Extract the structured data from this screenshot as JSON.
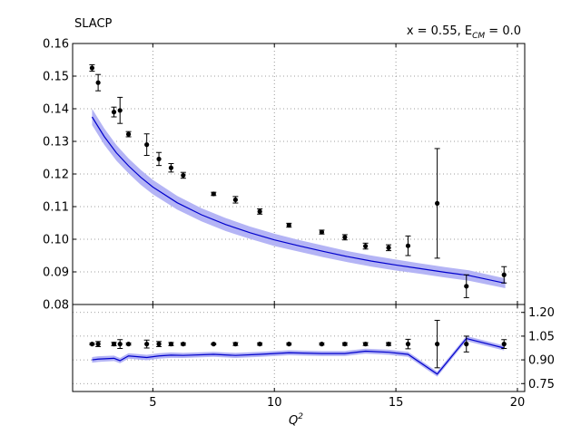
{
  "labels": {
    "experiment": "SLACP",
    "kinematics": "x = 0.55, E",
    "kinematics_sub": "CM",
    "kinematics_tail": " = 0.0",
    "xlabel_main": "Q",
    "xlabel_sup": "2"
  },
  "colors": {
    "theory_line": "#0000cc",
    "theory_band": "#b4b4f5",
    "data_points": "#000000",
    "grid": "#808080"
  },
  "chart_data": [
    {
      "type": "scatter",
      "panel": "top",
      "title": "SLACP",
      "xlim": [
        1.7,
        20.3
      ],
      "ylim": [
        0.08,
        0.16
      ],
      "yticks": [
        "0.08",
        "0.09",
        "0.10",
        "0.11",
        "0.12",
        "0.13",
        "0.14",
        "0.15",
        "0.16"
      ],
      "grid": true,
      "series": [
        {
          "kind": "data",
          "x": [
            2.5,
            2.75,
            3.4,
            3.65,
            4.0,
            4.75,
            5.25,
            5.75,
            6.25,
            7.5,
            8.4,
            9.4,
            10.6,
            11.95,
            12.9,
            13.75,
            14.7,
            15.5,
            16.7,
            17.9,
            19.45
          ],
          "y": [
            0.1525,
            0.148,
            0.139,
            0.1395,
            0.1322,
            0.129,
            0.1246,
            0.1219,
            0.1196,
            0.1139,
            0.1121,
            0.1085,
            0.1043,
            0.1022,
            0.1006,
            0.0979,
            0.0974,
            0.098,
            0.111,
            0.0856,
            0.0891
          ],
          "err": [
            0.001,
            0.0025,
            0.0015,
            0.004,
            0.0008,
            0.0033,
            0.002,
            0.0013,
            0.0009,
            0.0005,
            0.001,
            0.0008,
            0.0006,
            0.0006,
            0.0008,
            0.0009,
            0.0009,
            0.003,
            0.0168,
            0.0035,
            0.0025
          ]
        },
        {
          "kind": "theory",
          "x": [
            2.5,
            3.0,
            3.5,
            4.0,
            4.5,
            5.0,
            6.0,
            7.0,
            8.0,
            9.0,
            10.0,
            11.0,
            12.0,
            13.0,
            14.0,
            15.0,
            16.0,
            17.0,
            18.0,
            19.5
          ],
          "y": [
            0.1375,
            0.1315,
            0.1265,
            0.1225,
            0.119,
            0.116,
            0.1112,
            0.1075,
            0.1045,
            0.102,
            0.0998,
            0.098,
            0.0963,
            0.0947,
            0.0933,
            0.0921,
            0.091,
            0.0899,
            0.0889,
            0.0865
          ],
          "band": [
            0.0025,
            0.0025,
            0.0024,
            0.0023,
            0.0023,
            0.0022,
            0.0021,
            0.002,
            0.002,
            0.0019,
            0.0019,
            0.0018,
            0.0018,
            0.0017,
            0.0017,
            0.0017,
            0.0016,
            0.0016,
            0.0016,
            0.0015
          ]
        }
      ]
    },
    {
      "type": "scatter",
      "panel": "bottom",
      "xlabel": "Q²",
      "xlim": [
        1.7,
        20.3
      ],
      "ylim": [
        0.7,
        1.25
      ],
      "xticks": [
        "5",
        "10",
        "15",
        "20"
      ],
      "yticks": [
        "1.20",
        "1.05",
        "0.90",
        "0.75"
      ],
      "grid": true,
      "series": [
        {
          "kind": "data_ratio",
          "x": [
            2.5,
            2.75,
            3.4,
            3.65,
            4.0,
            4.75,
            5.25,
            5.75,
            6.25,
            7.5,
            8.4,
            9.4,
            10.6,
            11.95,
            12.9,
            13.75,
            14.7,
            15.5,
            16.7,
            17.9,
            19.45
          ],
          "y": [
            1.0,
            1.0,
            1.0,
            1.0,
            1.0,
            1.0,
            1.0,
            1.0,
            1.0,
            1.0,
            1.0,
            1.0,
            1.0,
            1.0,
            1.0,
            1.0,
            1.0,
            1.0,
            1.0,
            1.0,
            1.0
          ],
          "err": [
            0.005,
            0.016,
            0.011,
            0.028,
            0.006,
            0.025,
            0.016,
            0.01,
            0.007,
            0.004,
            0.009,
            0.007,
            0.006,
            0.006,
            0.008,
            0.009,
            0.009,
            0.03,
            0.15,
            0.05,
            0.028
          ]
        },
        {
          "kind": "theory_ratio",
          "x": [
            2.5,
            2.75,
            3.4,
            3.65,
            4.0,
            4.75,
            5.25,
            5.75,
            6.25,
            7.5,
            8.4,
            9.4,
            10.6,
            11.95,
            12.9,
            13.75,
            14.7,
            15.5,
            16.7,
            17.9,
            19.45
          ],
          "y": [
            0.9,
            0.905,
            0.91,
            0.895,
            0.925,
            0.915,
            0.925,
            0.93,
            0.928,
            0.935,
            0.928,
            0.935,
            0.945,
            0.94,
            0.94,
            0.955,
            0.948,
            0.935,
            0.81,
            1.035,
            0.975
          ],
          "band": [
            0.018,
            0.018,
            0.017,
            0.017,
            0.017,
            0.017,
            0.017,
            0.017,
            0.016,
            0.016,
            0.016,
            0.016,
            0.016,
            0.016,
            0.016,
            0.016,
            0.016,
            0.016,
            0.016,
            0.016,
            0.016
          ]
        }
      ]
    }
  ]
}
